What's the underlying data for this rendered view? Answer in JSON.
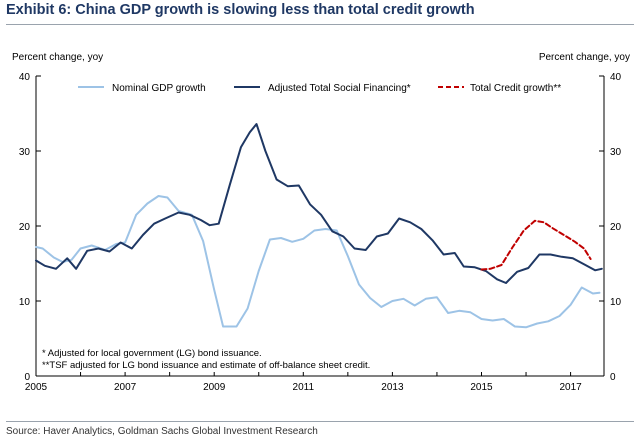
{
  "title": "Exhibit 6: China GDP growth is slowing less than total credit growth",
  "source": "Source: Haver Analytics, Goldman Sachs Global Investment Research",
  "chart_data": {
    "type": "line",
    "title": "Exhibit 6: China GDP growth is slowing less than total credit growth",
    "ylabel_left": "Percent change, yoy",
    "ylabel_right": "Percent change, yoy",
    "xlim": [
      2005,
      2017.75
    ],
    "ylim": [
      0,
      40
    ],
    "x_ticks": [
      "2005",
      "2007",
      "2009",
      "2011",
      "2013",
      "2015",
      "2017"
    ],
    "y_ticks": [
      "0",
      "10",
      "20",
      "30",
      "40"
    ],
    "grid": false,
    "legend_position": "top",
    "series": [
      {
        "name": "Nominal GDP growth",
        "color": "#9dc3e6",
        "style": "solid",
        "x": [
          2005.0,
          2005.15,
          2005.4,
          2005.6,
          2005.8,
          2006.0,
          2006.25,
          2006.55,
          2006.8,
          2007.0,
          2007.25,
          2007.5,
          2007.75,
          2007.95,
          2008.2,
          2008.5,
          2008.75,
          2009.0,
          2009.2,
          2009.5,
          2009.75,
          2010.0,
          2010.25,
          2010.5,
          2010.75,
          2011.0,
          2011.25,
          2011.5,
          2011.75,
          2012.0,
          2012.25,
          2012.5,
          2012.75,
          2013.0,
          2013.25,
          2013.5,
          2013.75,
          2014.0,
          2014.25,
          2014.5,
          2014.75,
          2015.0,
          2015.25,
          2015.5,
          2015.75,
          2016.0,
          2016.25,
          2016.5,
          2016.75,
          2017.0,
          2017.25,
          2017.5,
          2017.65
        ],
        "values": [
          17.2,
          17.0,
          15.8,
          15.2,
          15.5,
          17.0,
          17.4,
          16.8,
          17.6,
          17.8,
          21.5,
          23.0,
          24.0,
          23.8,
          22.0,
          21.5,
          18.0,
          11.5,
          6.6,
          6.6,
          9.0,
          14.0,
          18.2,
          18.4,
          17.9,
          18.3,
          19.4,
          19.6,
          19.4,
          16.0,
          12.2,
          10.4,
          9.2,
          10.0,
          10.3,
          9.4,
          10.3,
          10.5,
          8.4,
          8.7,
          8.5,
          7.6,
          7.4,
          7.6,
          6.6,
          6.5,
          7.0,
          7.3,
          8.0,
          9.5,
          11.8,
          11.0,
          11.1
        ]
      },
      {
        "name": "Adjusted Total Social Financing*",
        "color": "#1f3864",
        "style": "solid",
        "x": [
          2005.0,
          2005.2,
          2005.45,
          2005.7,
          2005.9,
          2006.15,
          2006.4,
          2006.65,
          2006.9,
          2007.15,
          2007.4,
          2007.65,
          2007.9,
          2008.2,
          2008.45,
          2008.7,
          2008.9,
          2009.1,
          2009.35,
          2009.6,
          2009.8,
          2009.95,
          2010.15,
          2010.4,
          2010.65,
          2010.9,
          2011.15,
          2011.4,
          2011.65,
          2011.9,
          2012.15,
          2012.4,
          2012.65,
          2012.9,
          2013.15,
          2013.4,
          2013.65,
          2013.9,
          2014.15,
          2014.4,
          2014.6,
          2014.85,
          2015.1,
          2015.35,
          2015.55,
          2015.8,
          2016.05,
          2016.3,
          2016.55,
          2016.8,
          2017.05,
          2017.3,
          2017.55,
          2017.7
        ],
        "values": [
          15.4,
          14.7,
          14.3,
          15.7,
          14.3,
          16.7,
          17.0,
          16.6,
          17.8,
          17.0,
          18.8,
          20.3,
          21.0,
          21.8,
          21.5,
          20.8,
          20.1,
          20.3,
          25.5,
          30.5,
          32.5,
          33.6,
          30.0,
          26.2,
          25.3,
          25.4,
          22.9,
          21.5,
          19.3,
          18.6,
          17.0,
          16.8,
          18.6,
          19.0,
          21.0,
          20.5,
          19.6,
          18.1,
          16.2,
          16.4,
          14.6,
          14.5,
          14.0,
          12.9,
          12.4,
          13.9,
          14.4,
          16.2,
          16.2,
          15.9,
          15.7,
          14.9,
          14.1,
          14.3
        ]
      },
      {
        "name": "Total Credit growth**",
        "color": "#c00000",
        "style": "dashed",
        "x": [
          2015.0,
          2015.2,
          2015.45,
          2015.7,
          2015.95,
          2016.2,
          2016.4,
          2016.6,
          2016.85,
          2017.1,
          2017.3,
          2017.45
        ],
        "values": [
          14.2,
          14.3,
          14.8,
          17.2,
          19.4,
          20.7,
          20.5,
          19.7,
          18.8,
          17.9,
          17.0,
          15.6
        ]
      }
    ],
    "annotations": [
      "* Adjusted for local government (LG) bond issuance.",
      "**TSF adjusted for LG bond issuance and estimate of off-balance sheet credit."
    ]
  }
}
